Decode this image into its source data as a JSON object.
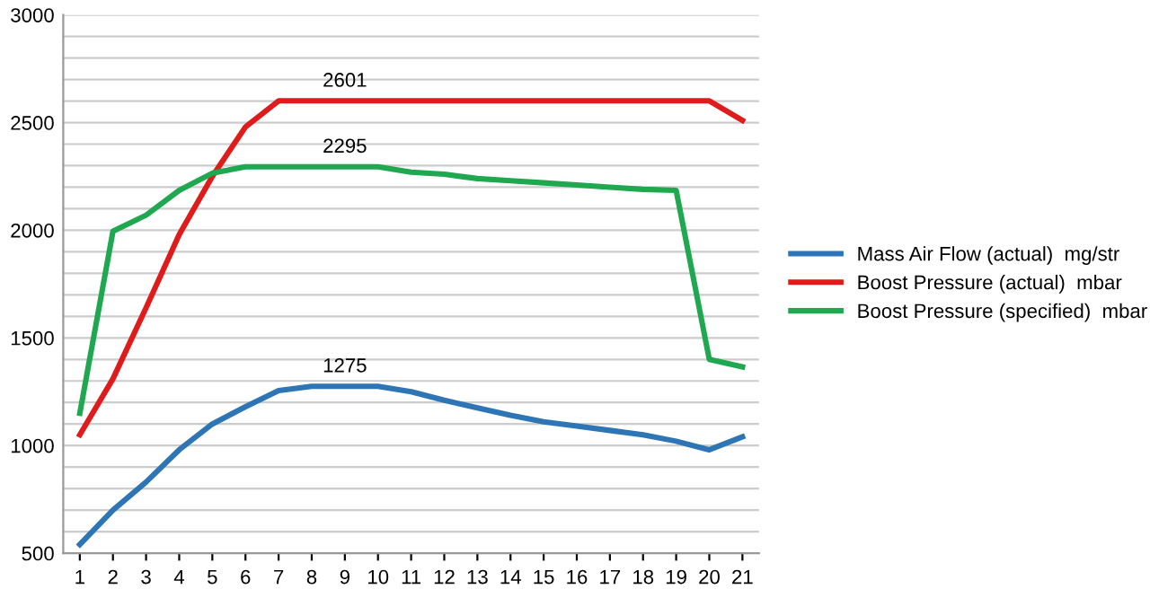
{
  "chart_data": {
    "type": "line",
    "categories": [
      "1",
      "2",
      "3",
      "4",
      "5",
      "6",
      "7",
      "8",
      "9",
      "10",
      "11",
      "12",
      "13",
      "14",
      "15",
      "16",
      "17",
      "18",
      "19",
      "20",
      "21"
    ],
    "series": [
      {
        "name": "Mass Air Flow (actual)  mg/str",
        "color": "#2e75b6",
        "values": [
          540,
          700,
          830,
          980,
          1100,
          1180,
          1255,
          1275,
          1275,
          1275,
          1250,
          1210,
          1175,
          1140,
          1110,
          1090,
          1070,
          1050,
          1020,
          980,
          1040
        ]
      },
      {
        "name": "Boost Pressure (actual)  mbar",
        "color": "#e01b1b",
        "values": [
          1050,
          1310,
          1640,
          1980,
          2250,
          2480,
          2601,
          2601,
          2601,
          2601,
          2601,
          2601,
          2601,
          2601,
          2601,
          2601,
          2601,
          2601,
          2601,
          2601,
          2510
        ]
      },
      {
        "name": "Boost Pressure (specified)  mbar",
        "color": "#1fa84f",
        "values": [
          1150,
          1995,
          2070,
          2185,
          2265,
          2295,
          2295,
          2295,
          2295,
          2295,
          2270,
          2260,
          2240,
          2230,
          2220,
          2210,
          2200,
          2190,
          2185,
          1400,
          1365
        ]
      }
    ],
    "ylim": [
      500,
      3000
    ],
    "yticks": [
      500,
      {
        "value": 600,
        "label": null
      },
      {
        "value": 700,
        "label": null
      },
      {
        "value": 800,
        "label": null
      },
      {
        "value": 900,
        "label": null
      },
      1000,
      {
        "value": 1100,
        "label": null
      },
      {
        "value": 1200,
        "label": null
      },
      {
        "value": 1300,
        "label": null
      },
      {
        "value": 1400,
        "label": null
      },
      1500,
      {
        "value": 1600,
        "label": null
      },
      {
        "value": 1700,
        "label": null
      },
      {
        "value": 1800,
        "label": null
      },
      {
        "value": 1900,
        "label": null
      },
      2000,
      {
        "value": 2100,
        "label": null
      },
      {
        "value": 2200,
        "label": null
      },
      {
        "value": 2300,
        "label": null
      },
      {
        "value": 2400,
        "label": null
      },
      2500,
      {
        "value": 2600,
        "label": null
      },
      {
        "value": 2700,
        "label": null
      },
      {
        "value": 2800,
        "label": null
      },
      {
        "value": 2900,
        "label": null
      },
      3000
    ],
    "annotations": [
      {
        "text": "2601",
        "x": "9",
        "y": 2601
      },
      {
        "text": "2295",
        "x": "9",
        "y": 2295
      },
      {
        "text": "1275",
        "x": "9",
        "y": 1275
      }
    ],
    "grid": "y",
    "legend": "right",
    "marker": "none",
    "line_style": "solid"
  }
}
